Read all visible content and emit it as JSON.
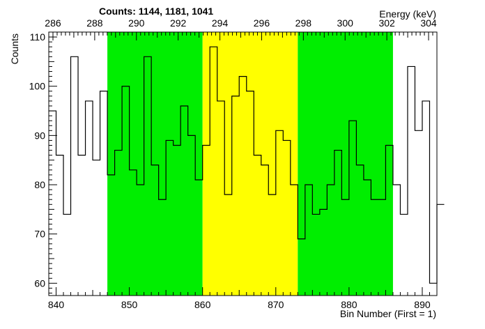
{
  "chart_data": {
    "type": "histogram-step",
    "title": "Counts:   1144,   1181,   1041",
    "ylabel": "Counts",
    "xlabel": "Bin Number (First = 1)",
    "x2label": "Energy (keV)",
    "xlim": [
      839,
      892
    ],
    "ylim": [
      57.5,
      111
    ],
    "x2lim": [
      285.8,
      304.4
    ],
    "yticks": [
      60,
      70,
      80,
      90,
      100,
      110
    ],
    "xticks": [
      840,
      850,
      860,
      870,
      880,
      890
    ],
    "x2ticks": [
      286,
      288,
      290,
      292,
      294,
      296,
      298,
      300,
      302,
      304
    ],
    "regions": [
      {
        "name": "left-background",
        "x0": 847,
        "x1": 860,
        "color": "#00ee00"
      },
      {
        "name": "peak",
        "x0": 860,
        "x1": 873,
        "color": "#ffff00"
      },
      {
        "name": "right-background",
        "x0": 873,
        "x1": 886,
        "color": "#00ee00"
      }
    ],
    "bins_start": 839,
    "bin_width": 1,
    "values": [
      95,
      86,
      74,
      106,
      86,
      97,
      85,
      99,
      82,
      87,
      100,
      83,
      80,
      106,
      84,
      77,
      89,
      88,
      96,
      90,
      81,
      88,
      108,
      97,
      78,
      98,
      102,
      99,
      86,
      84,
      78,
      91,
      89,
      80,
      69,
      80,
      74,
      75,
      80,
      87,
      77,
      93,
      84,
      81,
      77,
      77,
      88,
      80,
      74,
      104,
      91,
      97,
      60,
      76
    ]
  }
}
